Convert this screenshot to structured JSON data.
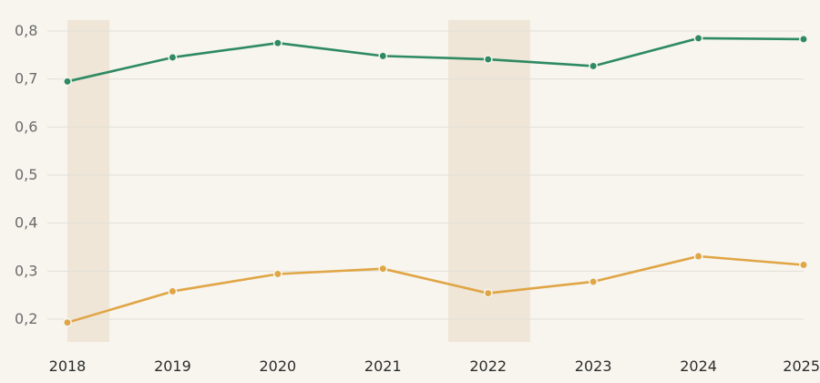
{
  "chart_data": {
    "type": "line",
    "x": [
      "2018",
      "2019",
      "2020",
      "2021",
      "2022",
      "2023",
      "2024",
      "2025"
    ],
    "series": [
      {
        "values": [
          0.695,
          0.745,
          0.775,
          0.748,
          0.741,
          0.727,
          0.785,
          0.783
        ],
        "color": "#2e8a62"
      },
      {
        "values": [
          0.193,
          0.258,
          0.294,
          0.305,
          0.254,
          0.278,
          0.331,
          0.313
        ],
        "color": "#e0a545"
      }
    ],
    "ylim": [
      0.15,
      0.82
    ],
    "yticks": [
      "0,2",
      "0,3",
      "0,4",
      "0,5",
      "0,6",
      "0,7",
      "0,8"
    ],
    "ytick_values": [
      0.2,
      0.3,
      0.4,
      0.5,
      0.6,
      0.7,
      0.8
    ],
    "highlight_periods": [
      {
        "from": "2018",
        "to": "2018.4"
      },
      {
        "from": "2021.62",
        "to": "2022.4"
      }
    ],
    "band_color": "#efe6d8",
    "grid": true,
    "legend": "none"
  }
}
